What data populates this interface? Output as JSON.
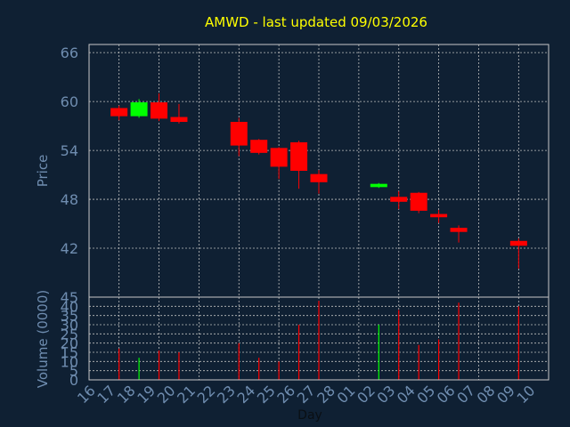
{
  "colors": {
    "background": "#0f2033",
    "title": "#ffff00",
    "axis_text": "#6f8db0",
    "frame": "#c8c8c8",
    "grid": "#bfbfbf",
    "down": "#ff0000",
    "up": "#00ff00"
  },
  "chart_data": [
    {
      "type": "candlestick",
      "title": "AMWD - last updated 09/03/2026",
      "ylabel": "Price",
      "ylim": [
        36,
        67
      ],
      "yticks": [
        66,
        60,
        54,
        48,
        42
      ],
      "grid": true,
      "candles": [
        {
          "day": "17",
          "open": 59.2,
          "high": 59.5,
          "low": 57.7,
          "close": 58.2
        },
        {
          "day": "18",
          "open": 58.2,
          "high": 60.3,
          "low": 58.0,
          "close": 59.9
        },
        {
          "day": "19",
          "open": 59.9,
          "high": 61.0,
          "low": 57.6,
          "close": 57.9
        },
        {
          "day": "20",
          "open": 58.1,
          "high": 59.7,
          "low": 57.3,
          "close": 57.5
        },
        {
          "day": "23",
          "open": 57.5,
          "high": 58.0,
          "low": 53.3,
          "close": 54.6
        },
        {
          "day": "24",
          "open": 55.3,
          "high": 55.4,
          "low": 53.5,
          "close": 53.7
        },
        {
          "day": "25",
          "open": 54.3,
          "high": 54.4,
          "low": 50.5,
          "close": 52.0
        },
        {
          "day": "26",
          "open": 55.0,
          "high": 55.2,
          "low": 49.3,
          "close": 51.5
        },
        {
          "day": "27",
          "open": 51.1,
          "high": 51.6,
          "low": 48.7,
          "close": 50.1
        },
        {
          "day": "02",
          "open": 49.5,
          "high": 50.0,
          "low": 49.4,
          "close": 49.9
        },
        {
          "day": "03",
          "open": 48.3,
          "high": 49.0,
          "low": 46.8,
          "close": 47.7
        },
        {
          "day": "04",
          "open": 48.8,
          "high": 48.9,
          "low": 46.3,
          "close": 46.6
        },
        {
          "day": "05",
          "open": 46.2,
          "high": 46.7,
          "low": 45.1,
          "close": 45.8
        },
        {
          "day": "06",
          "open": 44.5,
          "high": 44.8,
          "low": 42.7,
          "close": 44.0
        },
        {
          "day": "09",
          "open": 42.9,
          "high": 43.2,
          "low": 39.5,
          "close": 42.3
        }
      ]
    },
    {
      "type": "bar",
      "ylabel": "Volume (0000)",
      "xlabel": "Day",
      "ylim": [
        0,
        45
      ],
      "yticks": [
        45,
        40,
        35,
        30,
        25,
        20,
        15,
        10,
        5,
        0
      ],
      "grid": true,
      "categories": [
        "16",
        "17",
        "18",
        "19",
        "20",
        "21",
        "22",
        "23",
        "24",
        "25",
        "26",
        "27",
        "28",
        "01",
        "02",
        "03",
        "04",
        "05",
        "06",
        "07",
        "08",
        "09",
        "10"
      ],
      "bars": [
        {
          "day": "17",
          "value": 17,
          "direction": "down"
        },
        {
          "day": "18",
          "value": 12,
          "direction": "up"
        },
        {
          "day": "19",
          "value": 16,
          "direction": "down"
        },
        {
          "day": "20",
          "value": 15,
          "direction": "down"
        },
        {
          "day": "23",
          "value": 20,
          "direction": "down"
        },
        {
          "day": "24",
          "value": 12,
          "direction": "down"
        },
        {
          "day": "25",
          "value": 10,
          "direction": "down"
        },
        {
          "day": "26",
          "value": 30,
          "direction": "down"
        },
        {
          "day": "27",
          "value": 43,
          "direction": "down"
        },
        {
          "day": "02",
          "value": 30,
          "direction": "up"
        },
        {
          "day": "03",
          "value": 38,
          "direction": "down"
        },
        {
          "day": "04",
          "value": 19,
          "direction": "down"
        },
        {
          "day": "05",
          "value": 22,
          "direction": "down"
        },
        {
          "day": "06",
          "value": 42,
          "direction": "down"
        },
        {
          "day": "09",
          "value": 40,
          "direction": "down"
        }
      ]
    }
  ]
}
